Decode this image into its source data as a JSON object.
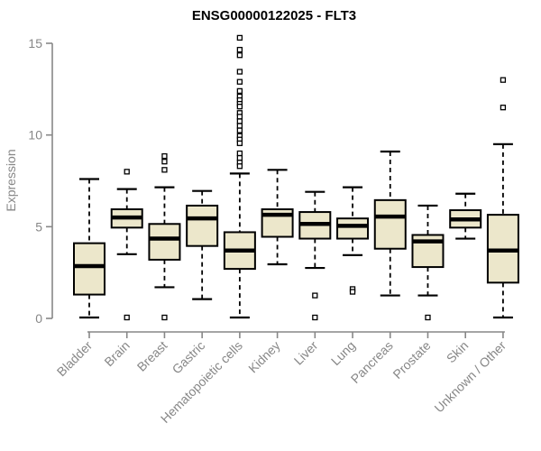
{
  "title": "ENSG00000122025 - FLT3",
  "colors": {
    "axis": "#878787",
    "tick_text": "#878787",
    "box_fill": "#ece7cb",
    "box_border": "#000000",
    "median": "#000000",
    "whisker": "#000000",
    "outlier_stroke": "#000000",
    "outlier_fill": "#ffffff",
    "title_color": "#000000",
    "background": "#ffffff"
  },
  "chart_data": {
    "type": "boxplot",
    "title": "ENSG00000122025 - FLT3",
    "xlabel": "",
    "ylabel": "Expression",
    "ylim": [
      0,
      15.5
    ],
    "yticks": [
      0,
      5,
      10,
      15
    ],
    "grid": false,
    "legend": "none",
    "categories": [
      "Bladder",
      "Brain",
      "Breast",
      "Gastric",
      "Hematopoietic cells",
      "Kidney",
      "Liver",
      "Lung",
      "Pancreas",
      "Prostate",
      "Skin",
      "Unknown / Other"
    ],
    "series": [
      {
        "name": "Bladder",
        "whisker_low": 0.05,
        "q1": 1.3,
        "median": 2.85,
        "q3": 4.1,
        "whisker_high": 7.6,
        "outliers": []
      },
      {
        "name": "Brain",
        "whisker_low": 3.5,
        "q1": 4.95,
        "median": 5.5,
        "q3": 5.95,
        "whisker_high": 7.05,
        "outliers": [
          8.0,
          0.05
        ]
      },
      {
        "name": "Breast",
        "whisker_low": 1.7,
        "q1": 3.2,
        "median": 4.35,
        "q3": 5.15,
        "whisker_high": 7.15,
        "outliers": [
          8.85,
          8.55,
          8.1,
          0.05
        ]
      },
      {
        "name": "Gastric",
        "whisker_low": 1.05,
        "q1": 3.95,
        "median": 5.45,
        "q3": 6.15,
        "whisker_high": 6.95,
        "outliers": []
      },
      {
        "name": "Hematopoietic cells",
        "whisker_low": 0.05,
        "q1": 2.7,
        "median": 3.7,
        "q3": 4.7,
        "whisker_high": 7.9,
        "outliers": [
          15.3,
          14.65,
          14.35,
          13.45,
          12.9,
          12.4,
          12.1,
          11.9,
          11.7,
          11.55,
          11.2,
          11.0,
          10.75,
          10.5,
          10.25,
          9.95,
          9.75,
          9.55,
          9.0,
          8.75,
          8.5,
          8.3
        ]
      },
      {
        "name": "Kidney",
        "whisker_low": 2.95,
        "q1": 4.45,
        "median": 5.65,
        "q3": 5.95,
        "whisker_high": 8.1,
        "outliers": []
      },
      {
        "name": "Liver",
        "whisker_low": 2.75,
        "q1": 4.35,
        "median": 5.15,
        "q3": 5.8,
        "whisker_high": 6.9,
        "outliers": [
          1.25,
          0.05
        ]
      },
      {
        "name": "Lung",
        "whisker_low": 3.45,
        "q1": 4.35,
        "median": 5.05,
        "q3": 5.45,
        "whisker_high": 7.15,
        "outliers": [
          1.6,
          1.45
        ]
      },
      {
        "name": "Pancreas",
        "whisker_low": 1.25,
        "q1": 3.8,
        "median": 5.55,
        "q3": 6.45,
        "whisker_high": 9.1,
        "outliers": []
      },
      {
        "name": "Prostate",
        "whisker_low": 1.25,
        "q1": 2.8,
        "median": 4.2,
        "q3": 4.55,
        "whisker_high": 6.15,
        "outliers": [
          0.05
        ]
      },
      {
        "name": "Skin",
        "whisker_low": 4.35,
        "q1": 4.95,
        "median": 5.4,
        "q3": 5.9,
        "whisker_high": 6.8,
        "outliers": []
      },
      {
        "name": "Unknown / Other",
        "whisker_low": 0.05,
        "q1": 1.95,
        "median": 3.7,
        "q3": 5.65,
        "whisker_high": 9.5,
        "outliers": [
          13.0,
          11.5
        ]
      }
    ]
  }
}
